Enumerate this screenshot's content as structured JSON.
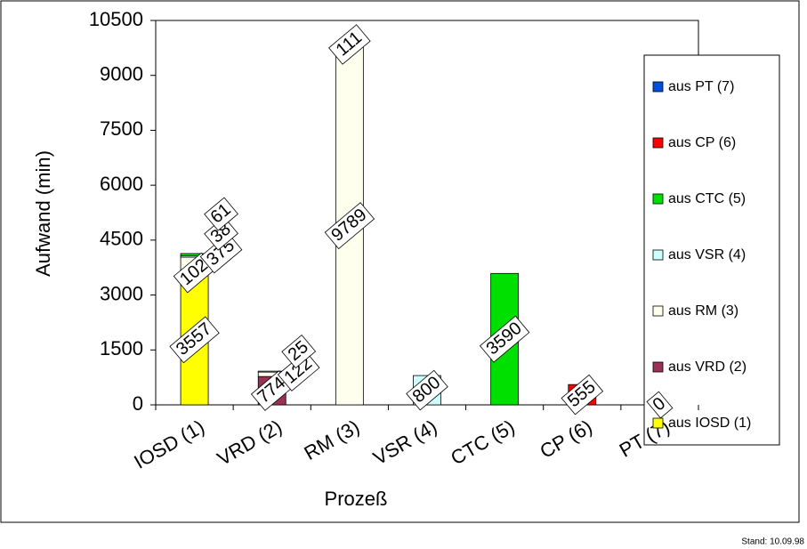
{
  "chart_data": {
    "type": "stacked_bar",
    "y_label": "Aufwand (min)",
    "x_label": "Prozeß",
    "footnote": "Stand: 10.09.98",
    "categories": [
      "IOSD (1)",
      "VRD (2)",
      "RM (3)",
      "VSR (4)",
      "CTC (5)",
      "CP (6)",
      "PT (7)"
    ],
    "series": [
      {
        "name": "aus PT (7)",
        "color": "#0050e0",
        "values": [
          null,
          null,
          null,
          null,
          null,
          null,
          0
        ]
      },
      {
        "name": "aus CP (6)",
        "color": "#ff0000",
        "values": [
          null,
          null,
          null,
          null,
          null,
          555,
          null
        ]
      },
      {
        "name": "aus CTC (5)",
        "color": "#00e000",
        "values": [
          61,
          null,
          null,
          null,
          3590,
          null,
          null
        ]
      },
      {
        "name": "aus VSR (4)",
        "color": "#ccffff",
        "values": [
          38,
          25,
          111,
          800,
          null,
          null,
          null
        ]
      },
      {
        "name": "aus RM (3)",
        "color": "#ffffee",
        "values": [
          375,
          122,
          9789,
          null,
          null,
          null,
          null
        ]
      },
      {
        "name": "aus VRD (2)",
        "color": "#993355",
        "values": [
          102,
          774,
          null,
          null,
          null,
          null,
          null
        ]
      },
      {
        "name": "aus IOSD (1)",
        "color": "#ffff00",
        "values": [
          3557,
          null,
          null,
          null,
          null,
          null,
          null
        ]
      }
    ],
    "ylim": [
      0,
      10500
    ],
    "yticks": [
      0,
      1500,
      3000,
      4500,
      6000,
      7500,
      9000,
      10500
    ]
  }
}
